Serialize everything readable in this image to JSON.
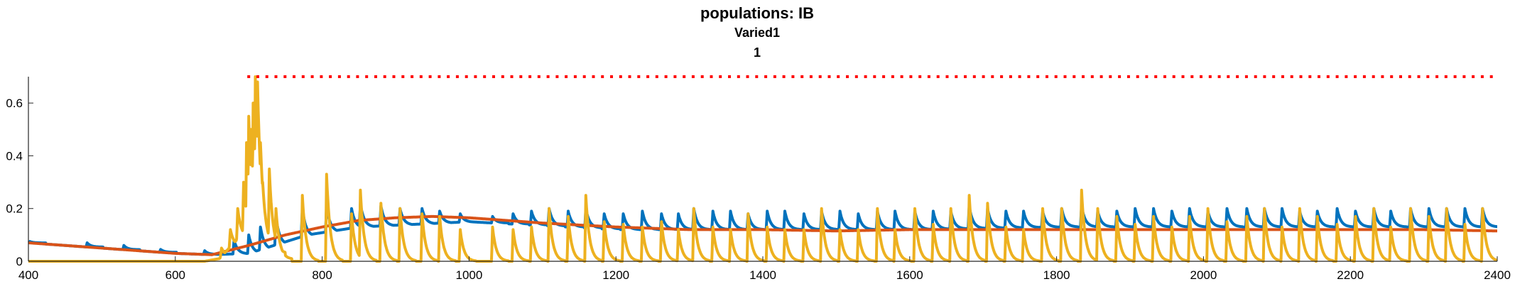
{
  "chart_data": {
    "type": "line",
    "title": "populations: IB",
    "subtitle": [
      "Varied1",
      "1"
    ],
    "xlabel": "",
    "ylabel": "",
    "xlim": [
      400,
      2400
    ],
    "ylim": [
      0,
      0.7
    ],
    "grid": false,
    "legend": "none",
    "x_ticks": [
      400,
      600,
      800,
      1000,
      1200,
      1400,
      1600,
      1800,
      2000,
      2200,
      2400
    ],
    "x_tick_labels": [
      "400",
      "600",
      "800",
      "1000",
      "1200",
      "1400",
      "1600",
      "1800",
      "2000",
      "2200",
      "2400"
    ],
    "y_ticks": [
      0,
      0.2,
      0.4,
      0.6
    ],
    "y_tick_labels": [
      "0",
      "0.2",
      "0.4",
      "0.6"
    ],
    "colors": {
      "series_blue": "#0072BD",
      "series_orange": "#D95319",
      "series_yellow": "#EDB120",
      "reference_dots": "#FF0000",
      "axis": "#262626"
    },
    "reference_line": {
      "y": 0.7,
      "x_start": 700,
      "x_end": 2400,
      "style": "dotted"
    },
    "series": [
      {
        "color": "#0072BD",
        "baseline": [
          [
            400,
            0.07
          ],
          [
            500,
            0.05
          ],
          [
            600,
            0.03
          ],
          [
            650,
            0.025
          ],
          [
            700,
            0.03
          ],
          [
            780,
            0.1
          ],
          [
            850,
            0.13
          ],
          [
            1000,
            0.15
          ],
          [
            1200,
            0.12
          ],
          [
            1400,
            0.12
          ],
          [
            1600,
            0.12
          ],
          [
            1800,
            0.13
          ],
          [
            2000,
            0.13
          ],
          [
            2400,
            0.13
          ]
        ],
        "peaks": [
          [
            402,
            0.075
          ],
          [
            480,
            0.07
          ],
          [
            530,
            0.06
          ],
          [
            580,
            0.045
          ],
          [
            640,
            0.04
          ],
          [
            680,
            0.08
          ],
          [
            700,
            0.1
          ],
          [
            716,
            0.13
          ],
          [
            737,
            0.17
          ],
          [
            773,
            0.2
          ],
          [
            806,
            0.21
          ],
          [
            840,
            0.2
          ],
          [
            852,
            0.22
          ],
          [
            880,
            0.21
          ],
          [
            906,
            0.2
          ],
          [
            936,
            0.2
          ],
          [
            960,
            0.19
          ],
          [
            988,
            0.18
          ],
          [
            1032,
            0.17
          ],
          [
            1060,
            0.18
          ],
          [
            1085,
            0.19
          ],
          [
            1109,
            0.2
          ],
          [
            1135,
            0.19
          ],
          [
            1159,
            0.2
          ],
          [
            1184,
            0.18
          ],
          [
            1210,
            0.18
          ],
          [
            1236,
            0.19
          ],
          [
            1262,
            0.18
          ],
          [
            1285,
            0.18
          ],
          [
            1306,
            0.2
          ],
          [
            1332,
            0.19
          ],
          [
            1356,
            0.19
          ],
          [
            1380,
            0.18
          ],
          [
            1406,
            0.19
          ],
          [
            1430,
            0.19
          ],
          [
            1456,
            0.18
          ],
          [
            1480,
            0.19
          ],
          [
            1505,
            0.19
          ],
          [
            1530,
            0.18
          ],
          [
            1556,
            0.19
          ],
          [
            1580,
            0.19
          ],
          [
            1607,
            0.19
          ],
          [
            1632,
            0.19
          ],
          [
            1656,
            0.19
          ],
          [
            1681,
            0.21
          ],
          [
            1706,
            0.2
          ],
          [
            1731,
            0.19
          ],
          [
            1755,
            0.19
          ],
          [
            1781,
            0.19
          ],
          [
            1807,
            0.2
          ],
          [
            1834,
            0.21
          ],
          [
            1856,
            0.19
          ],
          [
            1882,
            0.19
          ],
          [
            1907,
            0.2
          ],
          [
            1932,
            0.2
          ],
          [
            1957,
            0.19
          ],
          [
            1981,
            0.2
          ],
          [
            2006,
            0.19
          ],
          [
            2032,
            0.2
          ],
          [
            2059,
            0.2
          ],
          [
            2083,
            0.2
          ],
          [
            2107,
            0.2
          ],
          [
            2131,
            0.19
          ],
          [
            2155,
            0.19
          ],
          [
            2182,
            0.2
          ],
          [
            2207,
            0.19
          ],
          [
            2232,
            0.2
          ],
          [
            2255,
            0.19
          ],
          [
            2282,
            0.2
          ],
          [
            2307,
            0.2
          ],
          [
            2331,
            0.2
          ],
          [
            2356,
            0.2
          ],
          [
            2380,
            0.2
          ]
        ]
      },
      {
        "color": "#D95319",
        "baseline": [
          [
            400,
            0.07
          ],
          [
            450,
            0.06
          ],
          [
            500,
            0.05
          ],
          [
            550,
            0.04
          ],
          [
            600,
            0.03
          ],
          [
            650,
            0.025
          ],
          [
            700,
            0.06
          ],
          [
            750,
            0.1
          ],
          [
            800,
            0.13
          ],
          [
            850,
            0.155
          ],
          [
            900,
            0.165
          ],
          [
            950,
            0.17
          ],
          [
            1000,
            0.165
          ],
          [
            1050,
            0.155
          ],
          [
            1100,
            0.145
          ],
          [
            1200,
            0.13
          ],
          [
            1300,
            0.12
          ],
          [
            1400,
            0.12
          ],
          [
            1500,
            0.115
          ],
          [
            1600,
            0.12
          ],
          [
            1700,
            0.12
          ],
          [
            1800,
            0.12
          ],
          [
            1900,
            0.12
          ],
          [
            2000,
            0.12
          ],
          [
            2100,
            0.12
          ],
          [
            2200,
            0.12
          ],
          [
            2300,
            0.12
          ],
          [
            2400,
            0.115
          ]
        ],
        "peaks": []
      },
      {
        "color": "#EDB120",
        "baseline": [
          [
            400,
            0
          ],
          [
            640,
            0.0
          ],
          [
            660,
            0.01
          ],
          [
            690,
            0.1
          ],
          [
            720,
            0.05
          ],
          [
            740,
            0.0
          ],
          [
            2400,
            0.0
          ]
        ],
        "peaks": [
          [
            663,
            0.05
          ],
          [
            675,
            0.12
          ],
          [
            685,
            0.2
          ],
          [
            693,
            0.3
          ],
          [
            697,
            0.45
          ],
          [
            700,
            0.55
          ],
          [
            703,
            0.5
          ],
          [
            706,
            0.6
          ],
          [
            709,
            0.7
          ],
          [
            712,
            0.68
          ],
          [
            716,
            0.45
          ],
          [
            719,
            0.3
          ],
          [
            728,
            0.35
          ],
          [
            737,
            0.2
          ],
          [
            773,
            0.25
          ],
          [
            806,
            0.33
          ],
          [
            840,
            0.18
          ],
          [
            852,
            0.27
          ],
          [
            880,
            0.22
          ],
          [
            906,
            0.2
          ],
          [
            936,
            0.18
          ],
          [
            960,
            0.17
          ],
          [
            988,
            0.12
          ],
          [
            1032,
            0.13
          ],
          [
            1060,
            0.12
          ],
          [
            1085,
            0.13
          ],
          [
            1109,
            0.2
          ],
          [
            1135,
            0.17
          ],
          [
            1159,
            0.25
          ],
          [
            1184,
            0.15
          ],
          [
            1210,
            0.14
          ],
          [
            1236,
            0.13
          ],
          [
            1262,
            0.15
          ],
          [
            1285,
            0.12
          ],
          [
            1306,
            0.2
          ],
          [
            1332,
            0.13
          ],
          [
            1356,
            0.12
          ],
          [
            1380,
            0.18
          ],
          [
            1406,
            0.13
          ],
          [
            1430,
            0.12
          ],
          [
            1456,
            0.12
          ],
          [
            1480,
            0.2
          ],
          [
            1505,
            0.12
          ],
          [
            1530,
            0.12
          ],
          [
            1556,
            0.2
          ],
          [
            1580,
            0.12
          ],
          [
            1607,
            0.2
          ],
          [
            1632,
            0.14
          ],
          [
            1656,
            0.2
          ],
          [
            1681,
            0.25
          ],
          [
            1706,
            0.22
          ],
          [
            1731,
            0.13
          ],
          [
            1755,
            0.12
          ],
          [
            1781,
            0.2
          ],
          [
            1807,
            0.2
          ],
          [
            1834,
            0.27
          ],
          [
            1856,
            0.2
          ],
          [
            1882,
            0.17
          ],
          [
            1907,
            0.14
          ],
          [
            1932,
            0.17
          ],
          [
            1957,
            0.13
          ],
          [
            1981,
            0.17
          ],
          [
            2006,
            0.2
          ],
          [
            2032,
            0.15
          ],
          [
            2059,
            0.17
          ],
          [
            2083,
            0.2
          ],
          [
            2107,
            0.13
          ],
          [
            2131,
            0.2
          ],
          [
            2155,
            0.17
          ],
          [
            2182,
            0.14
          ],
          [
            2207,
            0.17
          ],
          [
            2232,
            0.2
          ],
          [
            2255,
            0.13
          ],
          [
            2282,
            0.2
          ],
          [
            2307,
            0.17
          ],
          [
            2331,
            0.2
          ],
          [
            2356,
            0.14
          ],
          [
            2380,
            0.2
          ]
        ]
      }
    ]
  }
}
